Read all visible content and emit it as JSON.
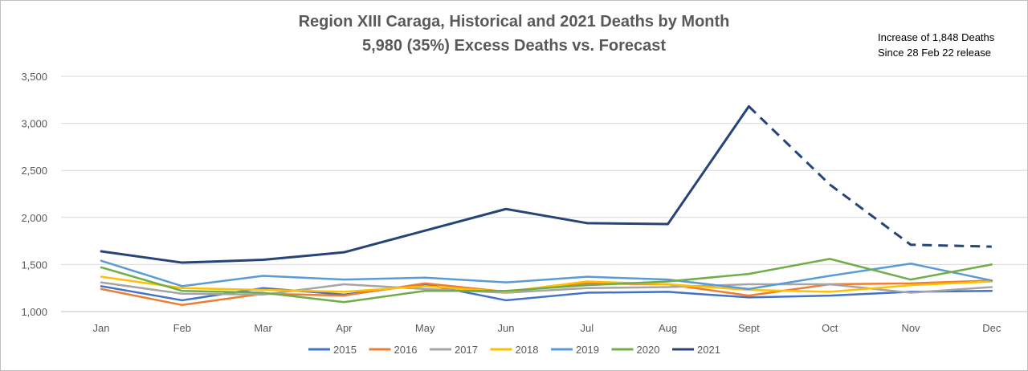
{
  "chart_data": {
    "type": "line",
    "title": "Region XIII Caraga, Historical and 2021 Deaths by Month",
    "subtitle": "5,980 (35%) Excess Deaths vs. Forecast",
    "annotation": [
      "Increase of 1,848 Deaths",
      "Since 28 Feb 22 release"
    ],
    "categories": [
      "Jan",
      "Feb",
      "Mar",
      "Apr",
      "May",
      "Jun",
      "Jul",
      "Aug",
      "Sept",
      "Oct",
      "Nov",
      "Dec"
    ],
    "ylim": [
      1000,
      3500
    ],
    "yticks": [
      1000,
      1500,
      2000,
      2500,
      3000,
      3500
    ],
    "ytick_labels": [
      "1,000",
      "1,500",
      "2,000",
      "2,500",
      "3,000",
      "3,500"
    ],
    "grid": true,
    "legend_position": "bottom",
    "series": [
      {
        "name": "2015",
        "color": "#4472c4",
        "values": [
          1270,
          1120,
          1250,
          1180,
          1290,
          1120,
          1200,
          1210,
          1150,
          1170,
          1210,
          1220
        ]
      },
      {
        "name": "2016",
        "color": "#ed7d31",
        "values": [
          1240,
          1070,
          1190,
          1170,
          1300,
          1210,
          1300,
          1290,
          1170,
          1290,
          1300,
          1330
        ]
      },
      {
        "name": "2017",
        "color": "#a5a5a5",
        "values": [
          1310,
          1190,
          1180,
          1290,
          1240,
          1200,
          1250,
          1260,
          1290,
          1290,
          1200,
          1260
        ]
      },
      {
        "name": "2018",
        "color": "#ffc000",
        "values": [
          1370,
          1250,
          1230,
          1210,
          1270,
          1210,
          1320,
          1290,
          1230,
          1210,
          1280,
          1320
        ]
      },
      {
        "name": "2019",
        "color": "#5b9bd5",
        "values": [
          1540,
          1270,
          1380,
          1340,
          1360,
          1310,
          1370,
          1340,
          1240,
          1380,
          1510,
          1330
        ]
      },
      {
        "name": "2020",
        "color": "#70ad47",
        "values": [
          1470,
          1220,
          1200,
          1100,
          1220,
          1220,
          1280,
          1320,
          1400,
          1560,
          1340,
          1500
        ]
      },
      {
        "name": "2021",
        "color": "#264478",
        "values": [
          1640,
          1520,
          1550,
          1630,
          1860,
          2090,
          1940,
          1930,
          3180,
          2350,
          1710,
          1690
        ],
        "dashed_from_index": 8
      }
    ]
  }
}
